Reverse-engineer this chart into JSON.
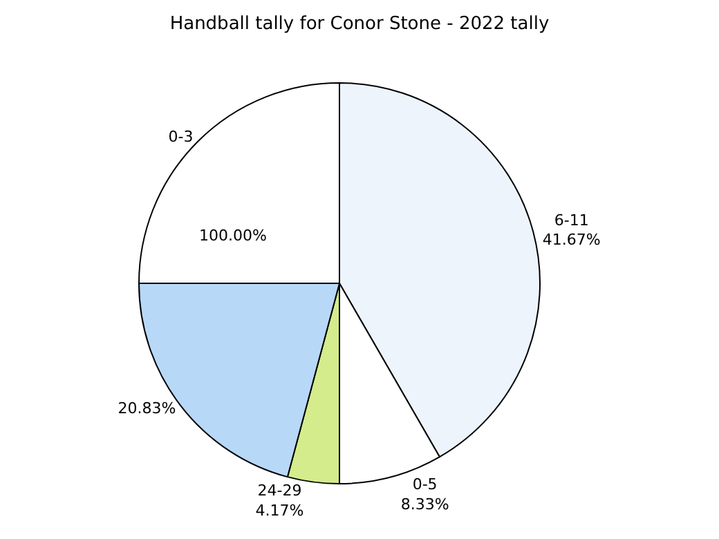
{
  "chart_data": {
    "type": "pie",
    "title": "Handball tally for Conor Stone - 2022 tally",
    "categories": [
      "6-11",
      "0-5",
      "24-29",
      null,
      "0-3"
    ],
    "values": [
      41.67,
      8.33,
      4.17,
      20.83,
      25
    ],
    "value_labels": [
      "41.67%",
      "8.33%",
      "4.17%",
      "20.83%",
      null
    ],
    "annotations": [
      "100.00%"
    ],
    "colors": [
      "#eef4fc",
      "#ffffff",
      "#d4ec8c",
      "#b8d8f8",
      "#ffffff"
    ],
    "legend": false
  }
}
